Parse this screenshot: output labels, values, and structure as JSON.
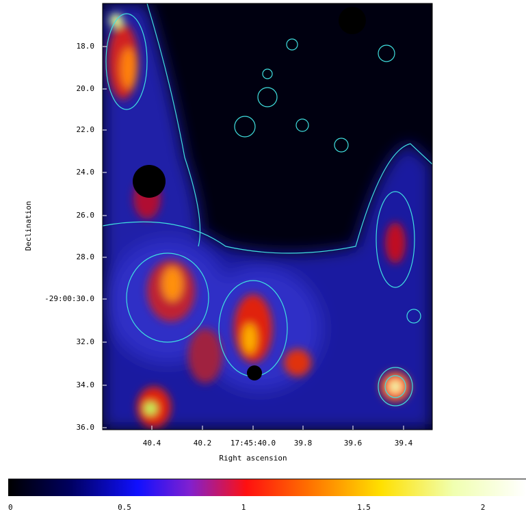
{
  "axes": {
    "y_label": "Declination",
    "x_label": "Right ascension",
    "y_ticks": [
      "18.0",
      "20.0",
      "22.0",
      "24.0",
      "26.0",
      "28.0",
      "-29:00:30.0",
      "32.0",
      "34.0",
      "36.0"
    ],
    "x_ticks": [
      "40.4",
      "40.2",
      "17:45:40.0",
      "39.8",
      "39.6",
      "39.4"
    ]
  },
  "colorbar": {
    "ticks": [
      "0",
      "0.5",
      "1",
      "1.5",
      "2"
    ]
  }
}
